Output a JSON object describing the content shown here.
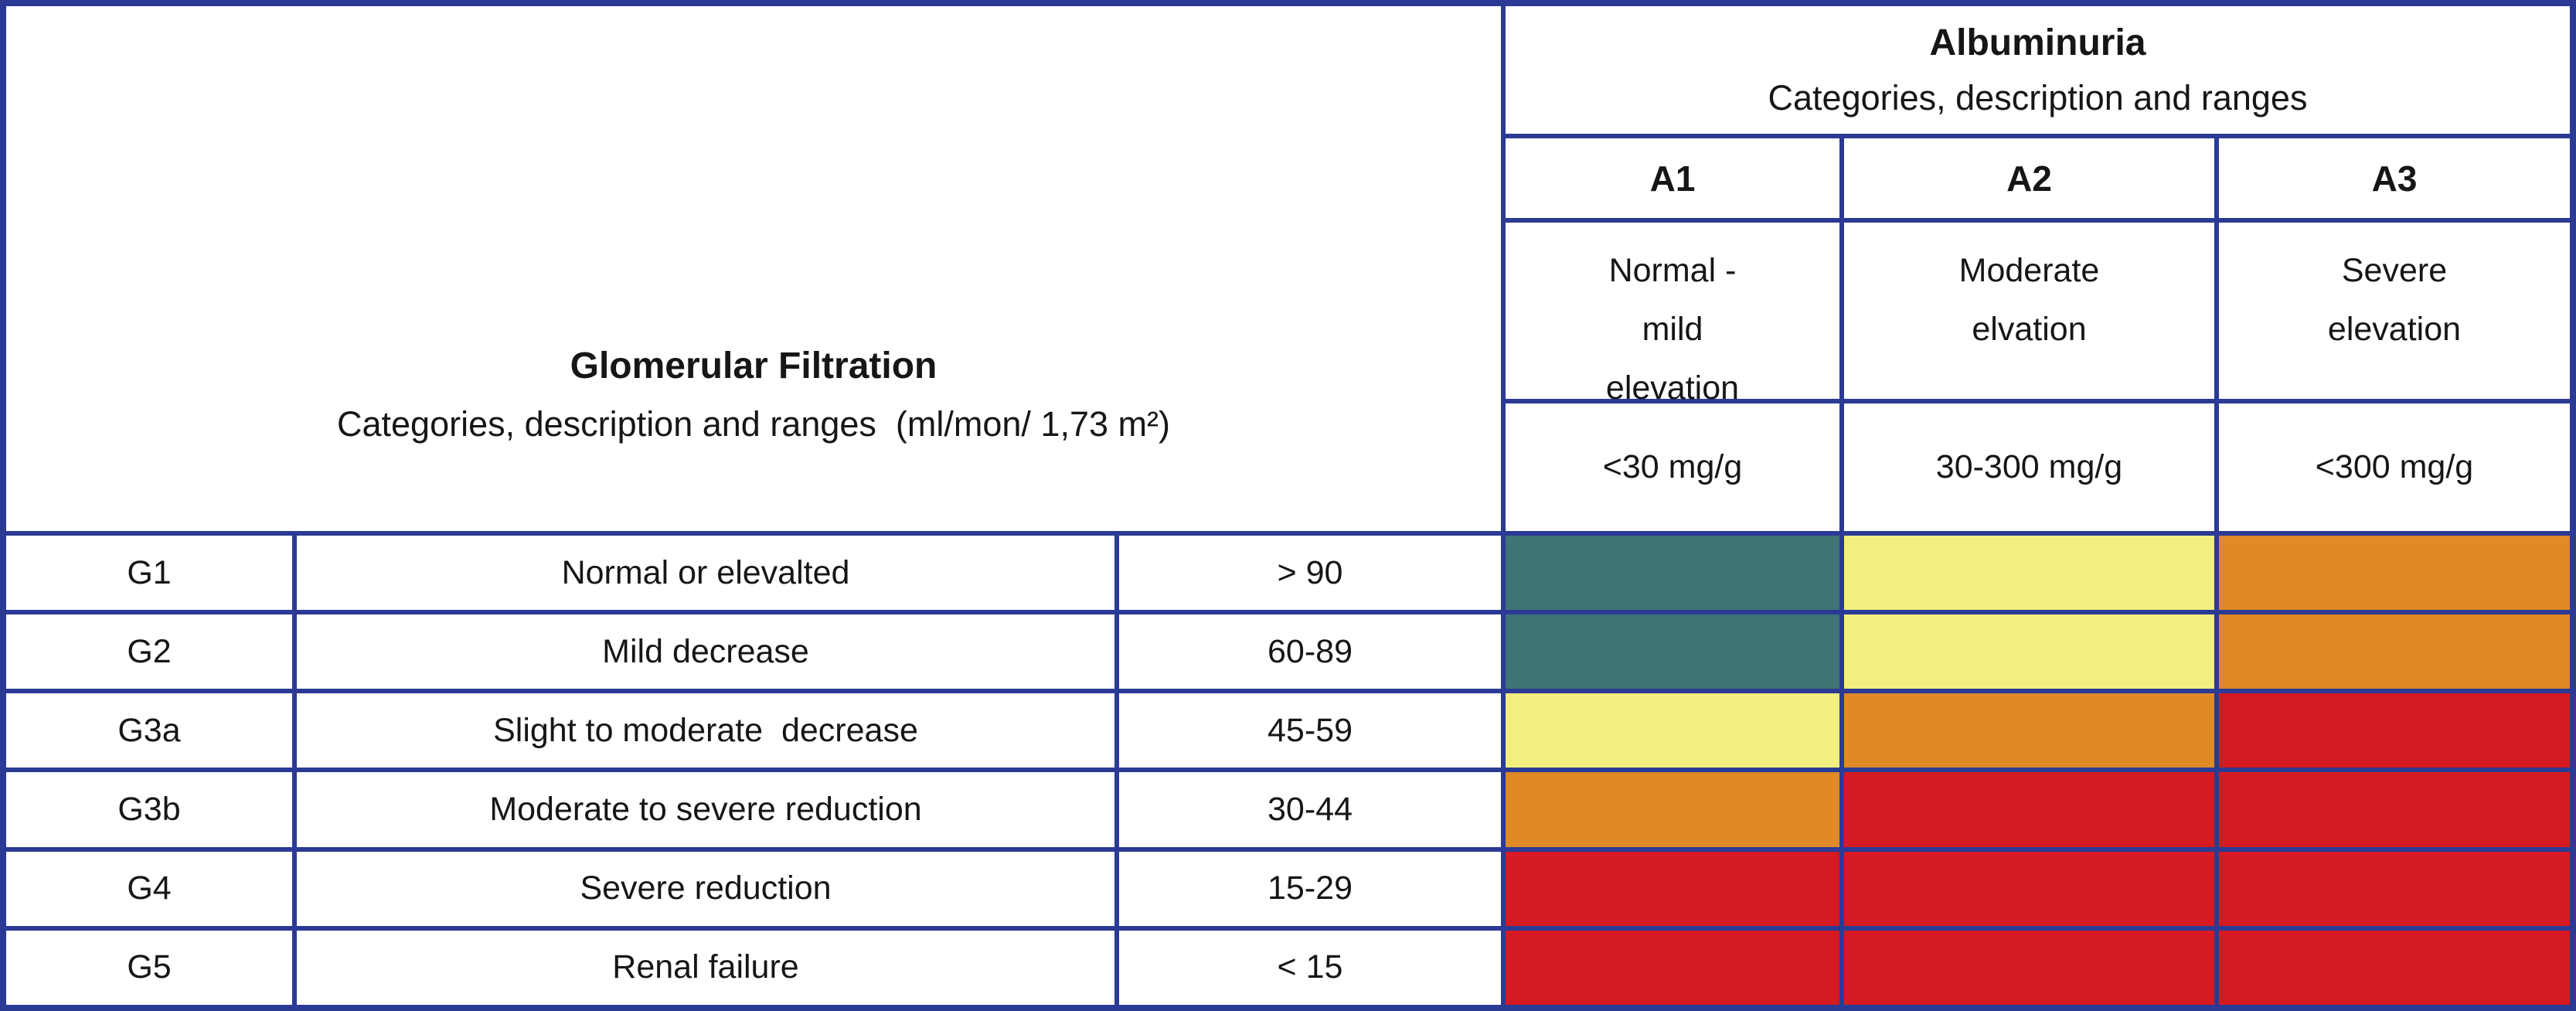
{
  "colors": {
    "navy": "#2B3A94",
    "green": "#3F7375",
    "yellow": "#F2EE7F",
    "orange": "#DF8927",
    "red": "#D51B21"
  },
  "albuminuria": {
    "title": "Albuminuria",
    "subtitle": "Categories, description and ranges",
    "columns": [
      {
        "label": "A1",
        "desc_lines": [
          "Normal -",
          "mild",
          "elevation"
        ],
        "range": "<30 mg/g"
      },
      {
        "label": "A2",
        "desc_lines": [
          "Moderate",
          "elvation",
          ""
        ],
        "range": "30-300 mg/g"
      },
      {
        "label": "A3",
        "desc_lines": [
          "Severe",
          "elevation",
          ""
        ],
        "range": "<300 mg/g"
      }
    ]
  },
  "gfr": {
    "title": "Glomerular Filtration",
    "subtitle": "Categories, description and ranges  (ml/mon/ 1,73 m²)",
    "rows": [
      {
        "label": "G1",
        "desc": "Normal or elevalted",
        "range": "> 90"
      },
      {
        "label": "G2",
        "desc": "Mild decrease",
        "range": "60-89"
      },
      {
        "label": "G3a",
        "desc": "Slight to moderate  decrease",
        "range": "45-59"
      },
      {
        "label": "G3b",
        "desc": "Moderate to severe reduction",
        "range": "30-44"
      },
      {
        "label": "G4",
        "desc": "Severe reduction",
        "range": "15-29"
      },
      {
        "label": "G5",
        "desc": "Renal failure",
        "range": "< 15"
      }
    ]
  },
  "matrix": {
    "rows": [
      [
        "green",
        "yellow",
        "orange"
      ],
      [
        "green",
        "yellow",
        "orange"
      ],
      [
        "yellow",
        "orange",
        "red"
      ],
      [
        "orange",
        "red",
        "red"
      ],
      [
        "red",
        "red",
        "red"
      ],
      [
        "red",
        "red",
        "red"
      ]
    ]
  },
  "chart_data": {
    "type": "heatmap",
    "title": "Albuminuria / Glomerular Filtration category grid",
    "x_axis_title_lines": [
      "Albuminuria",
      "Categories, description and ranges"
    ],
    "y_axis_title_lines": [
      "Glomerular Filtration",
      "Categories, description and ranges  (ml/mon/ 1,73 m²)"
    ],
    "x_categories": [
      {
        "label": "A1",
        "description": "Normal - mild elevation",
        "range": "<30 mg/g"
      },
      {
        "label": "A2",
        "description": "Moderate elvation",
        "range": "30-300 mg/g"
      },
      {
        "label": "A3",
        "description": "Severe elevation",
        "range": "<300 mg/g"
      }
    ],
    "y_categories": [
      {
        "label": "G1",
        "description": "Normal or elevalted",
        "range": "> 90"
      },
      {
        "label": "G2",
        "description": "Mild decrease",
        "range": "60-89"
      },
      {
        "label": "G3a",
        "description": "Slight to moderate  decrease",
        "range": "45-59"
      },
      {
        "label": "G3b",
        "description": "Moderate to severe reduction",
        "range": "30-44"
      },
      {
        "label": "G4",
        "description": "Severe reduction",
        "range": "15-29"
      },
      {
        "label": "G5",
        "description": "Renal failure",
        "range": "< 15"
      }
    ],
    "cell_colors": [
      [
        "green",
        "yellow",
        "orange"
      ],
      [
        "green",
        "yellow",
        "orange"
      ],
      [
        "yellow",
        "orange",
        "red"
      ],
      [
        "orange",
        "red",
        "red"
      ],
      [
        "red",
        "red",
        "red"
      ],
      [
        "red",
        "red",
        "red"
      ]
    ],
    "color_hex": {
      "green": "#3F7375",
      "yellow": "#F2EE7F",
      "orange": "#DF8927",
      "red": "#D51B21"
    },
    "grid": "navy borders on all cells",
    "legend": "none"
  }
}
